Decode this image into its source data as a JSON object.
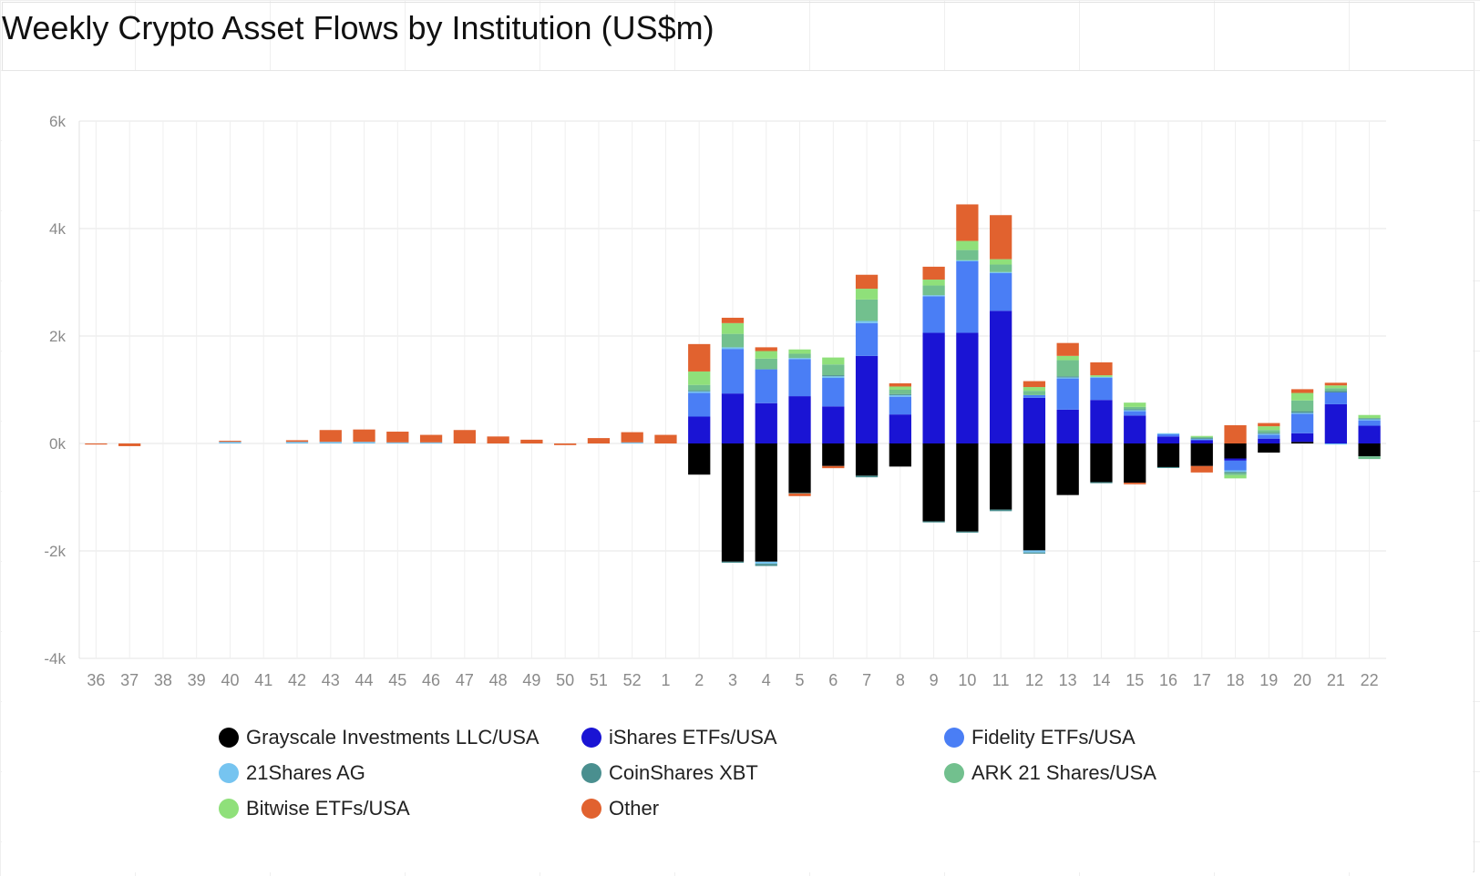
{
  "title": "Weekly Crypto Asset Flows by Institution (US$m)",
  "chart_data": {
    "type": "bar",
    "stacked": true,
    "title": "Weekly Crypto Asset Flows by Institution (US$m)",
    "xlabel": "",
    "ylabel": "",
    "ylim": [
      -4000,
      6000
    ],
    "yticks": [
      6000,
      4000,
      2000,
      0,
      -2000,
      -4000
    ],
    "ytick_labels": [
      "6k",
      "4k",
      "2k",
      "0k",
      "-2k",
      "-4k"
    ],
    "grid": true,
    "legend_position": "bottom",
    "categories": [
      "36",
      "37",
      "38",
      "39",
      "40",
      "41",
      "42",
      "43",
      "44",
      "45",
      "46",
      "47",
      "48",
      "49",
      "50",
      "51",
      "52",
      "1",
      "2",
      "3",
      "4",
      "5",
      "6",
      "7",
      "8",
      "9",
      "10",
      "11",
      "12",
      "13",
      "14",
      "15",
      "16",
      "17",
      "18",
      "19",
      "20",
      "21",
      "22"
    ],
    "series": [
      {
        "name": "Grayscale Investments LLC/USA",
        "color": "#000000",
        "values": [
          0,
          0,
          0,
          0,
          0,
          0,
          0,
          0,
          0,
          0,
          0,
          0,
          0,
          0,
          0,
          0,
          0,
          0,
          -580,
          -2200,
          -2200,
          -920,
          -420,
          -600,
          -430,
          -1450,
          -1640,
          -1230,
          -1990,
          -960,
          -720,
          -730,
          -440,
          -420,
          -280,
          -170,
          30,
          0,
          -240
        ]
      },
      {
        "name": "iShares ETFs/USA",
        "color": "#1a14d4",
        "values": [
          0,
          0,
          0,
          0,
          0,
          0,
          0,
          0,
          0,
          0,
          0,
          0,
          0,
          0,
          0,
          0,
          0,
          0,
          500,
          930,
          750,
          880,
          690,
          1630,
          540,
          2060,
          2060,
          2470,
          850,
          630,
          810,
          520,
          130,
          60,
          -40,
          90,
          160,
          730,
          330
        ]
      },
      {
        "name": "Fidelity ETFs/USA",
        "color": "#4a7ef5",
        "values": [
          0,
          0,
          0,
          0,
          0,
          0,
          0,
          0,
          0,
          0,
          0,
          0,
          0,
          0,
          0,
          0,
          0,
          0,
          440,
          830,
          630,
          690,
          530,
          610,
          330,
          680,
          1330,
          700,
          50,
          580,
          410,
          80,
          40,
          20,
          -180,
          70,
          360,
          220,
          100
        ]
      },
      {
        "name": "21Shares AG",
        "color": "#76c4f0",
        "values": [
          0,
          0,
          0,
          0,
          30,
          0,
          30,
          30,
          30,
          20,
          20,
          0,
          0,
          0,
          0,
          0,
          20,
          0,
          30,
          30,
          -40,
          20,
          30,
          40,
          30,
          20,
          20,
          20,
          -40,
          20,
          20,
          20,
          20,
          10,
          -30,
          20,
          20,
          -20,
          20
        ]
      },
      {
        "name": "CoinShares XBT",
        "color": "#4a8f8f",
        "values": [
          0,
          0,
          0,
          0,
          0,
          0,
          0,
          0,
          0,
          0,
          0,
          0,
          0,
          0,
          0,
          0,
          0,
          0,
          20,
          -20,
          -40,
          -10,
          20,
          -30,
          20,
          -20,
          -20,
          -30,
          -20,
          20,
          -20,
          20,
          -10,
          10,
          -20,
          20,
          30,
          30,
          20
        ]
      },
      {
        "name": "ARK 21 Shares/USA",
        "color": "#72c08e",
        "values": [
          0,
          0,
          0,
          0,
          0,
          0,
          0,
          0,
          0,
          0,
          0,
          0,
          0,
          0,
          0,
          0,
          0,
          0,
          100,
          250,
          200,
          80,
          200,
          400,
          80,
          180,
          190,
          140,
          80,
          300,
          0,
          40,
          0,
          20,
          -40,
          50,
          200,
          50,
          -50
        ]
      },
      {
        "name": "Bitwise ETFs/USA",
        "color": "#8fe07a",
        "values": [
          0,
          0,
          0,
          0,
          0,
          0,
          0,
          0,
          0,
          0,
          0,
          0,
          0,
          0,
          0,
          0,
          0,
          0,
          250,
          200,
          140,
          80,
          130,
          200,
          60,
          110,
          170,
          100,
          70,
          80,
          30,
          80,
          0,
          20,
          -60,
          70,
          140,
          50,
          60
        ]
      },
      {
        "name": "Other",
        "color": "#e1622f",
        "values": [
          -20,
          -50,
          0,
          0,
          20,
          0,
          30,
          220,
          230,
          200,
          140,
          250,
          130,
          70,
          -30,
          100,
          190,
          160,
          510,
          100,
          70,
          -50,
          -40,
          260,
          60,
          240,
          680,
          820,
          110,
          240,
          240,
          -30,
          0,
          -120,
          340,
          60,
          70,
          50,
          0
        ]
      }
    ]
  },
  "legend": {
    "items": [
      {
        "label": "Grayscale Investments LLC/USA",
        "color": "#000000"
      },
      {
        "label": "iShares ETFs/USA",
        "color": "#1a14d4"
      },
      {
        "label": "Fidelity ETFs/USA",
        "color": "#4a7ef5"
      },
      {
        "label": "21Shares AG",
        "color": "#76c4f0"
      },
      {
        "label": "CoinShares XBT",
        "color": "#4a8f8f"
      },
      {
        "label": "ARK 21 Shares/USA",
        "color": "#72c08e"
      },
      {
        "label": "Bitwise ETFs/USA",
        "color": "#8fe07a"
      },
      {
        "label": "Other",
        "color": "#e1622f"
      }
    ]
  }
}
